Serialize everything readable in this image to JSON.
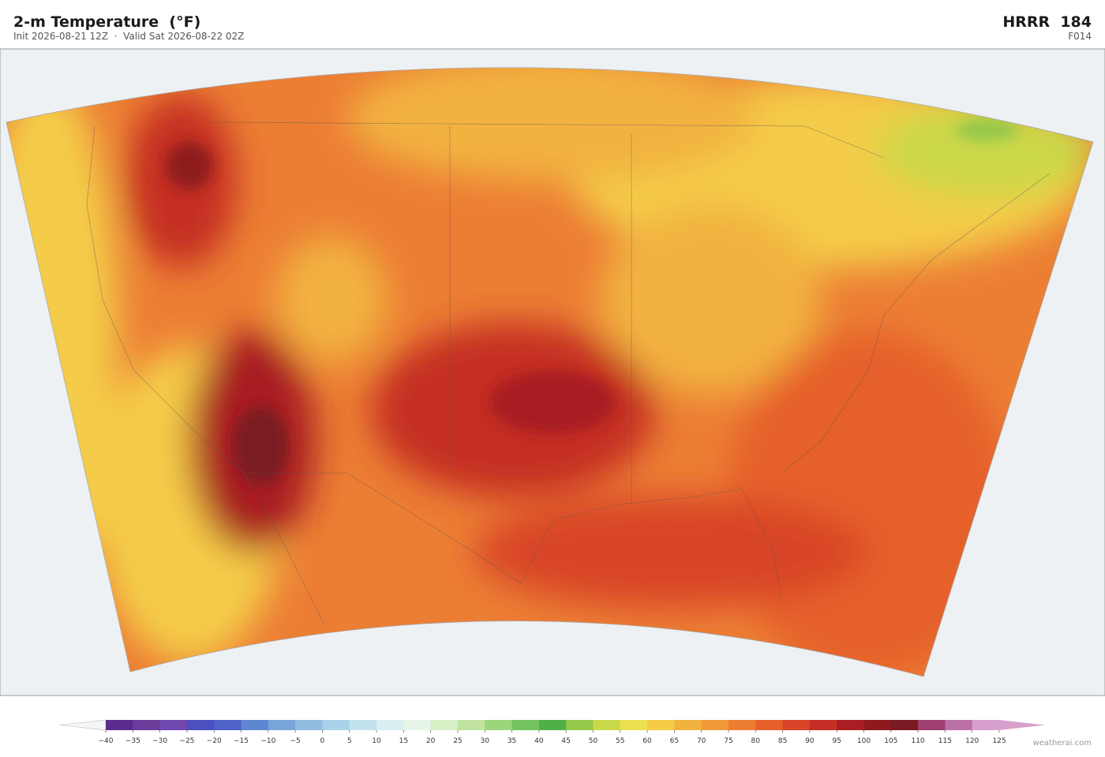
{
  "header": {
    "title": "2-m Temperature  (°F)",
    "subtitle": "Init 2026-08-21 12Z  ·  Valid Sat 2026-08-22 02Z",
    "model": "HRRR  184",
    "forecast_hour": "F014"
  },
  "colorbar": {
    "ticks": [
      {
        "value": -40,
        "label": "−40"
      },
      {
        "value": -35,
        "label": "−35"
      },
      {
        "value": -30,
        "label": "−30"
      },
      {
        "value": -25,
        "label": "−25"
      },
      {
        "value": -20,
        "label": "−20"
      },
      {
        "value": -15,
        "label": "−15"
      },
      {
        "value": -10,
        "label": "−10"
      },
      {
        "value": -5,
        "label": "−5"
      },
      0,
      5,
      10,
      15,
      20,
      25,
      30,
      35,
      40,
      45,
      50,
      55,
      60,
      65,
      70,
      75,
      80,
      85,
      90,
      95,
      100,
      105,
      110,
      115,
      120,
      125
    ],
    "colors": [
      "#5a2d8c",
      "#6a3d9a",
      "#7048b0",
      "#4b4fc0",
      "#4f62c8",
      "#5f86d0",
      "#78a4d8",
      "#92bde0",
      "#a9d2e8",
      "#c2e2ee",
      "#d9eff2",
      "#e6f5e6",
      "#d6efc4",
      "#bfe39e",
      "#9cd67c",
      "#73c45e",
      "#4fb048",
      "#95c84a",
      "#cbd84a",
      "#ece050",
      "#f4cc48",
      "#f2b240",
      "#f09a3a",
      "#ec7e34",
      "#e6602c",
      "#d84428",
      "#c42e24",
      "#a81e22",
      "#8e1a1e",
      "#7a1a22",
      "#a04070",
      "#bc70a8",
      "#d8a0cc"
    ],
    "under_color": "#f6f6f9",
    "over_color": "#d8a0cc"
  },
  "footer": {
    "credit": "weatherai.com"
  }
}
